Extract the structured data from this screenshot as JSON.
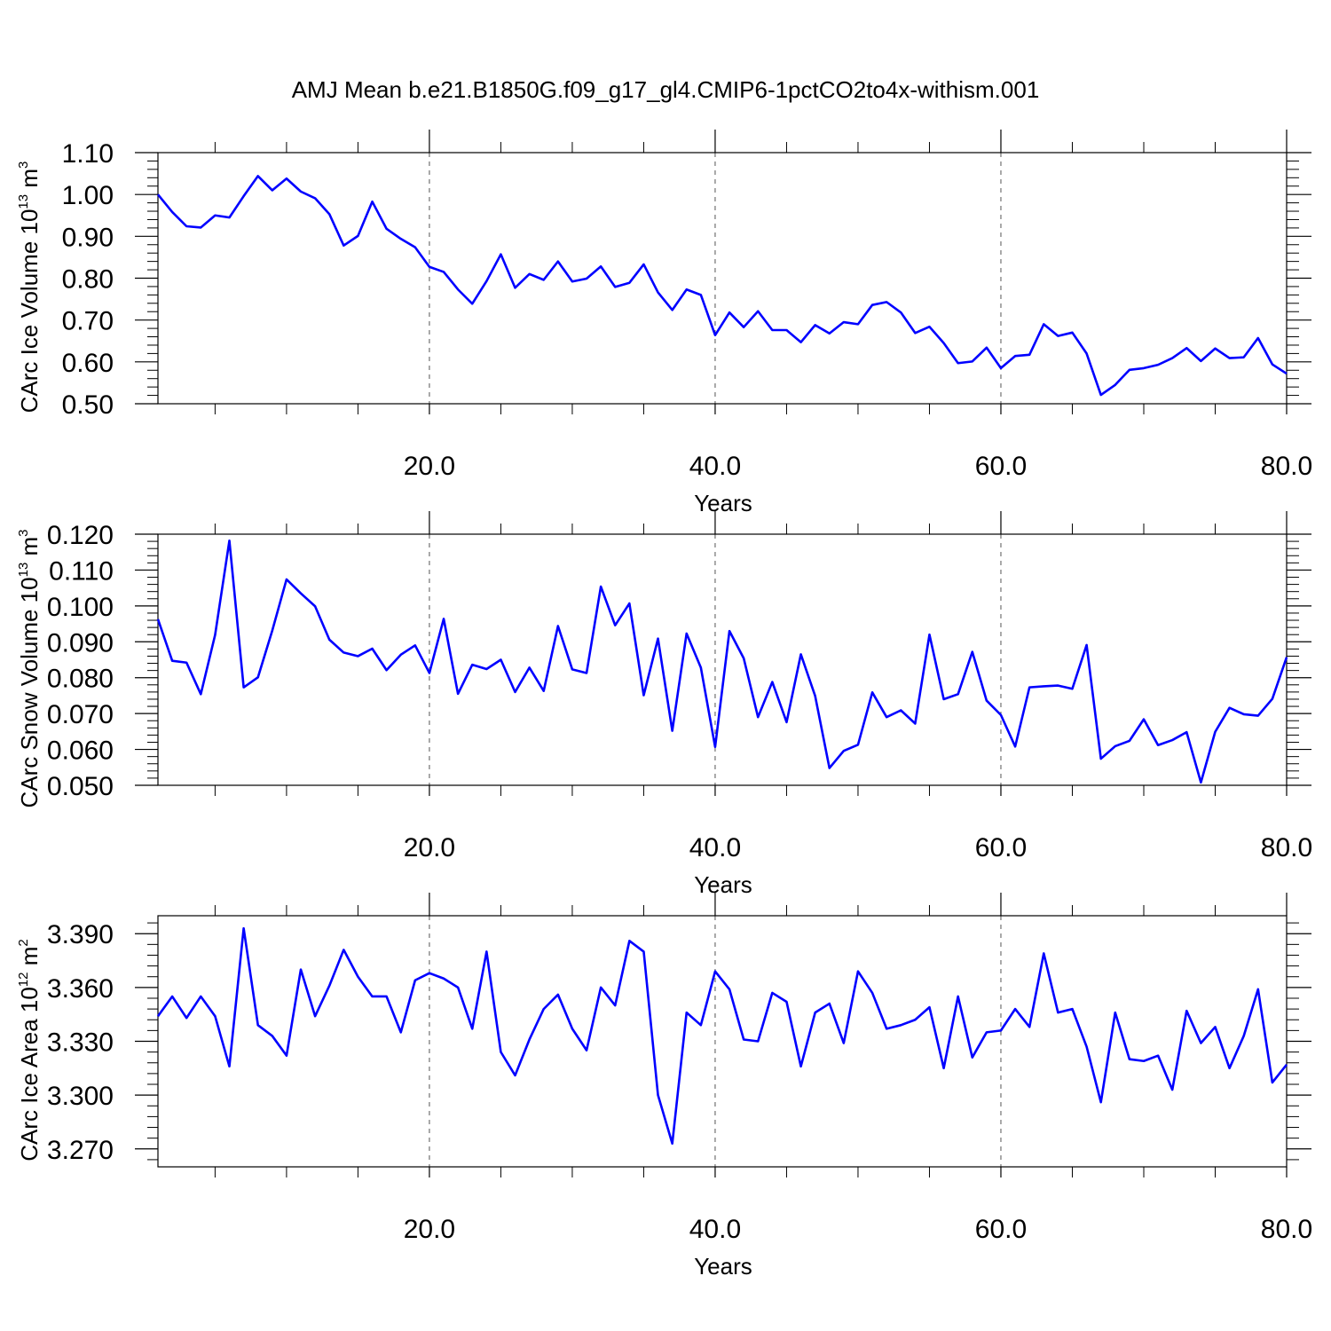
{
  "title": "AMJ Mean b.e21.B1850G.f09_g17_gl4.CMIP6-1pctCO2to4x-withism.001",
  "colors": {
    "series": "#0000ff",
    "axes": "#000000",
    "grid": "#555555"
  },
  "chart_data": [
    {
      "type": "line",
      "title": "AMJ Mean b.e21.B1850G.f09_g17_gl4.CMIP6-1pctCO2to4x-withism.001",
      "xlabel": "Years",
      "ylabel": {
        "text": "CArc Ice Volume 10",
        "exponent": "13",
        "unit": "m",
        "unit_exponent": "3"
      },
      "xlim": [
        1,
        80
      ],
      "ylim": [
        0.5,
        1.1
      ],
      "x_ticks": [
        "20.0",
        "40.0",
        "60.0",
        "80.0"
      ],
      "x_tick_values": [
        20,
        40,
        60,
        80
      ],
      "y_ticks": [
        "0.50",
        "0.60",
        "0.70",
        "0.80",
        "0.90",
        "1.00",
        "1.10"
      ],
      "y_tick_values": [
        0.5,
        0.6,
        0.7,
        0.8,
        0.9,
        1.0,
        1.1
      ],
      "grid": "vertical dashed at major x ticks",
      "x_start": 1,
      "series": [
        {
          "values": [
            1.0,
            0.958,
            0.924,
            0.921,
            0.95,
            0.945,
            0.996,
            1.044,
            1.01,
            1.038,
            1.007,
            0.991,
            0.953,
            0.878,
            0.901,
            0.983,
            0.918,
            0.894,
            0.874,
            0.827,
            0.815,
            0.773,
            0.739,
            0.793,
            0.857,
            0.777,
            0.81,
            0.796,
            0.84,
            0.792,
            0.799,
            0.828,
            0.779,
            0.789,
            0.833,
            0.766,
            0.724,
            0.773,
            0.76,
            0.664,
            0.718,
            0.683,
            0.721,
            0.676,
            0.676,
            0.647,
            0.688,
            0.668,
            0.695,
            0.69,
            0.736,
            0.743,
            0.718,
            0.669,
            0.684,
            0.645,
            0.597,
            0.601,
            0.634,
            0.585,
            0.614,
            0.617,
            0.69,
            0.662,
            0.67,
            0.62,
            0.521,
            0.545,
            0.581,
            0.585,
            0.593,
            0.609,
            0.633,
            0.602,
            0.632,
            0.609,
            0.611,
            0.657,
            0.594,
            0.572
          ]
        }
      ]
    },
    {
      "type": "line",
      "xlabel": "Years",
      "ylabel": {
        "text": "CArc Snow Volume 10",
        "exponent": "13",
        "unit": "m",
        "unit_exponent": "3"
      },
      "xlim": [
        1,
        80
      ],
      "ylim": [
        0.05,
        0.12
      ],
      "x_ticks": [
        "20.0",
        "40.0",
        "60.0",
        "80.0"
      ],
      "x_tick_values": [
        20,
        40,
        60,
        80
      ],
      "y_ticks": [
        "0.050",
        "0.060",
        "0.070",
        "0.080",
        "0.090",
        "0.100",
        "0.110",
        "0.120"
      ],
      "y_tick_values": [
        0.05,
        0.06,
        0.07,
        0.08,
        0.09,
        0.1,
        0.11,
        0.12
      ],
      "grid": "vertical dashed at major x ticks",
      "x_start": 1,
      "series": [
        {
          "values": [
            0.0963,
            0.0847,
            0.0842,
            0.0754,
            0.0919,
            0.1182,
            0.0773,
            0.0801,
            0.0931,
            0.1074,
            0.1035,
            0.0999,
            0.0906,
            0.087,
            0.086,
            0.0881,
            0.0821,
            0.0864,
            0.089,
            0.0813,
            0.0964,
            0.0755,
            0.0836,
            0.0824,
            0.085,
            0.076,
            0.0828,
            0.0763,
            0.0944,
            0.0823,
            0.0813,
            0.1054,
            0.0946,
            0.1007,
            0.0751,
            0.0909,
            0.0652,
            0.0923,
            0.0828,
            0.0607,
            0.093,
            0.0854,
            0.069,
            0.0788,
            0.0676,
            0.0865,
            0.0749,
            0.0548,
            0.0596,
            0.0613,
            0.0759,
            0.069,
            0.0709,
            0.0672,
            0.092,
            0.074,
            0.0754,
            0.0872,
            0.0736,
            0.0696,
            0.0608,
            0.0773,
            0.0776,
            0.0778,
            0.0769,
            0.0891,
            0.0574,
            0.0609,
            0.0624,
            0.0684,
            0.0612,
            0.0626,
            0.0648,
            0.0508,
            0.0649,
            0.0716,
            0.0698,
            0.0694,
            0.0741,
            0.0857
          ]
        }
      ]
    },
    {
      "type": "line",
      "xlabel": "Years",
      "ylabel": {
        "text": "CArc Ice Area 10",
        "exponent": "12",
        "unit": "m",
        "unit_exponent": "2"
      },
      "xlim": [
        1,
        80
      ],
      "ylim": [
        3.26,
        3.4
      ],
      "x_ticks": [
        "20.0",
        "40.0",
        "60.0",
        "80.0"
      ],
      "x_tick_values": [
        20,
        40,
        60,
        80
      ],
      "y_ticks": [
        "3.270",
        "3.300",
        "3.330",
        "3.360",
        "3.390"
      ],
      "y_tick_values": [
        3.27,
        3.3,
        3.33,
        3.36,
        3.39
      ],
      "grid": "vertical dashed at major x ticks",
      "x_start": 1,
      "series": [
        {
          "values": [
            3.344,
            3.355,
            3.343,
            3.355,
            3.344,
            3.316,
            3.393,
            3.339,
            3.333,
            3.322,
            3.37,
            3.344,
            3.361,
            3.381,
            3.366,
            3.355,
            3.355,
            3.335,
            3.364,
            3.368,
            3.365,
            3.36,
            3.337,
            3.38,
            3.324,
            3.311,
            3.331,
            3.348,
            3.356,
            3.337,
            3.325,
            3.36,
            3.35,
            3.386,
            3.38,
            3.3,
            3.273,
            3.346,
            3.339,
            3.369,
            3.359,
            3.331,
            3.33,
            3.357,
            3.352,
            3.316,
            3.346,
            3.351,
            3.329,
            3.369,
            3.357,
            3.337,
            3.339,
            3.342,
            3.349,
            3.315,
            3.355,
            3.321,
            3.335,
            3.336,
            3.348,
            3.338,
            3.379,
            3.346,
            3.348,
            3.327,
            3.296,
            3.346,
            3.32,
            3.319,
            3.322,
            3.303,
            3.347,
            3.329,
            3.338,
            3.315,
            3.333,
            3.359,
            3.307,
            3.317
          ]
        }
      ]
    }
  ]
}
